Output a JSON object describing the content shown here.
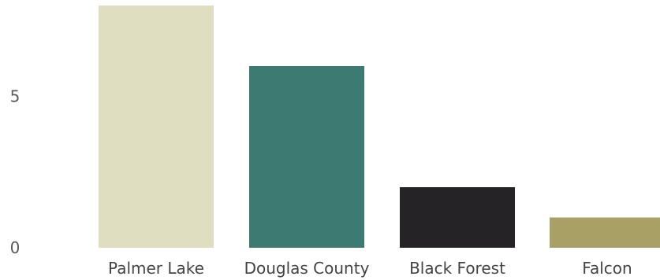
{
  "chart_data": {
    "type": "bar",
    "categories": [
      "Palmer Lake",
      "Douglas County",
      "Black Forest",
      "Falcon"
    ],
    "values": [
      8,
      6,
      2,
      1
    ],
    "colors": [
      "#e0dec0",
      "#3d7a72",
      "#252325",
      "#a8a064"
    ],
    "y_ticks": [
      0,
      5
    ],
    "ylim": [
      0,
      8
    ],
    "grid": false,
    "legend": "none"
  }
}
